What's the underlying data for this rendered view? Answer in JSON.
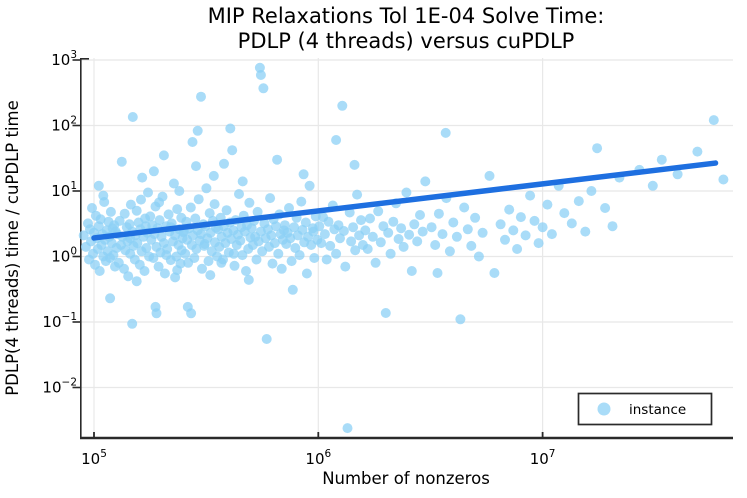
{
  "chart_data": {
    "type": "scatter",
    "title_line1": "MIP Relaxations Tol 1E-04 Solve Time:",
    "title_line2": "PDLP (4 threads) versus cuPDLP",
    "xlabel": "Number of nonzeros",
    "ylabel": "PDLP(4 threads) time / cuPDLP time",
    "x_scale": "log",
    "y_scale": "log",
    "x_tick_exponents": [
      5,
      6,
      7
    ],
    "y_tick_exponents": [
      3,
      2,
      1,
      0,
      -1,
      -2
    ],
    "xlim_log10": [
      4.94,
      7.85
    ],
    "ylim_log10": [
      -2.77,
      3.03
    ],
    "grid": true,
    "legend": {
      "label": "instance",
      "position": "bottom-right"
    },
    "colors": {
      "marker": "#8CD0F5",
      "marker_solid": "#A9DCF8",
      "trend_line": "#1E6FE0",
      "grid": "#E8E8E8",
      "axis": "#2A2A2A",
      "text": "#000000",
      "background": "#FFFFFF"
    },
    "trend_line": {
      "x": [
        100000,
        59000000
      ],
      "y": [
        1.92,
        26.7
      ]
    },
    "points": [
      [
        90000.0,
        2.1
      ],
      [
        92000.0,
        1.4
      ],
      [
        94000.0,
        3.2
      ],
      [
        95000.0,
        0.9
      ],
      [
        96000.0,
        2.6
      ],
      [
        97000.0,
        1.7
      ],
      [
        98000.0,
        5.5
      ],
      [
        99000.0,
        1.1
      ],
      [
        100000.0,
        2.3
      ],
      [
        101000.0,
        0.75
      ],
      [
        102000.0,
        4.2
      ],
      [
        103000.0,
        1.9
      ],
      [
        104000.0,
        1.3
      ],
      [
        105000.0,
        2.9
      ],
      [
        106000.0,
        0.6
      ],
      [
        107000.0,
        3.7
      ],
      [
        108000.0,
        1.5
      ],
      [
        109000.0,
        2.2
      ],
      [
        110000.0,
        1.0
      ],
      [
        111000.0,
        6.8
      ],
      [
        112000.0,
        1.8
      ],
      [
        113000.0,
        0.85
      ],
      [
        114000.0,
        2.5
      ],
      [
        115000.0,
        1.2
      ],
      [
        116000.0,
        3.4
      ],
      [
        117000.0,
        2.0
      ],
      [
        118000.0,
        0.95
      ],
      [
        119000.0,
        4.8
      ],
      [
        120000.0,
        1.6
      ],
      [
        121000.0,
        2.7
      ],
      [
        122000.0,
        1.05
      ],
      [
        123000.0,
        3.0
      ],
      [
        124000.0,
        0.7
      ],
      [
        125000.0,
        2.4
      ],
      [
        118000.0,
        0.23
      ],
      [
        110000.0,
        8.5
      ],
      [
        105000.0,
        12
      ],
      [
        126000.0,
        1.35
      ],
      [
        127000.0,
        2.2
      ],
      [
        129000.0,
        0.8
      ],
      [
        130000.0,
        3.5
      ],
      [
        132000.0,
        1.5
      ],
      [
        133000.0,
        28
      ],
      [
        134000.0,
        2.0
      ],
      [
        136000.0,
        0.65
      ],
      [
        137000.0,
        4.5
      ],
      [
        138000.0,
        1.25
      ],
      [
        140000.0,
        2.8
      ],
      [
        141000.0,
        1.7
      ],
      [
        142000.0,
        0.5
      ],
      [
        144000.0,
        3.1
      ],
      [
        145000.0,
        1.1
      ],
      [
        146000.0,
        6.2
      ],
      [
        148000.0,
        0.094
      ],
      [
        148000.0,
        2.4
      ],
      [
        149000.0,
        135
      ],
      [
        150000.0,
        1.45
      ],
      [
        152000.0,
        0.9
      ],
      [
        153000.0,
        2.1
      ],
      [
        155000.0,
        5.0
      ],
      [
        156000.0,
        1.6
      ],
      [
        158000.0,
        3.3
      ],
      [
        160000.0,
        0.75
      ],
      [
        161000.0,
        2.6
      ],
      [
        163000.0,
        1.2
      ],
      [
        164000.0,
        16
      ],
      [
        166000.0,
        2.0
      ],
      [
        168000.0,
        0.6
      ],
      [
        169000.0,
        3.8
      ],
      [
        171000.0,
        1.35
      ],
      [
        173000.0,
        2.3
      ],
      [
        174000.0,
        9.5
      ],
      [
        176000.0,
        1.0
      ],
      [
        178000.0,
        4.1
      ],
      [
        155000.0,
        0.42
      ],
      [
        145000.0,
        1.9
      ],
      [
        162000.0,
        7.4
      ],
      [
        170000.0,
        2.9
      ],
      [
        180000.0,
        1.8
      ],
      [
        182000.0,
        3.0
      ],
      [
        184000.0,
        0.95
      ],
      [
        186000.0,
        2.2
      ],
      [
        188000.0,
        5.8
      ],
      [
        190000.0,
        1.4
      ],
      [
        192000.0,
        2.7
      ],
      [
        194000.0,
        0.7
      ],
      [
        196000.0,
        3.6
      ],
      [
        198000.0,
        1.15
      ],
      [
        200000.0,
        2.0
      ],
      [
        202000.0,
        8.2
      ],
      [
        205000.0,
        1.6
      ],
      [
        207000.0,
        0.55
      ],
      [
        210000.0,
        2.9
      ],
      [
        212000.0,
        1.3
      ],
      [
        215000.0,
        4.4
      ],
      [
        217000.0,
        2.4
      ],
      [
        220000.0,
        0.88
      ],
      [
        222000.0,
        3.2
      ],
      [
        225000.0,
        1.7
      ],
      [
        227000.0,
        13
      ],
      [
        230000.0,
        2.1
      ],
      [
        233000.0,
        1.0
      ],
      [
        235000.0,
        5.3
      ],
      [
        238000.0,
        1.5
      ],
      [
        240000.0,
        2.6
      ],
      [
        243000.0,
        0.78
      ],
      [
        245000.0,
        3.9
      ],
      [
        248000.0,
        1.9
      ],
      [
        250000.0,
        2.35
      ],
      [
        185000.0,
        20
      ],
      [
        205000.0,
        35
      ],
      [
        230000.0,
        0.48
      ],
      [
        210000.0,
        1.05
      ],
      [
        195000.0,
        6.7
      ],
      [
        240000.0,
        10
      ],
      [
        220000.0,
        2.8
      ],
      [
        188000.0,
        0.17
      ],
      [
        190000.0,
        0.136
      ],
      [
        246000.0,
        1.25
      ],
      [
        235000.0,
        0.62
      ],
      [
        252000.0,
        2.4
      ],
      [
        255000.0,
        1.1
      ],
      [
        258000.0,
        3.4
      ],
      [
        260000.0,
        1.8
      ],
      [
        263000.0,
        0.8
      ],
      [
        266000.0,
        2.7
      ],
      [
        270000.0,
        5.6
      ],
      [
        273000.0,
        1.5
      ],
      [
        276000.0,
        2.1
      ],
      [
        280000.0,
        0.95
      ],
      [
        283000.0,
        3.8
      ],
      [
        286000.0,
        1.3
      ],
      [
        290000.0,
        2.5
      ],
      [
        293000.0,
        7.5
      ],
      [
        296000.0,
        1.75
      ],
      [
        300000.0,
        275
      ],
      [
        300000.0,
        2.2
      ],
      [
        303000.0,
        0.65
      ],
      [
        307000.0,
        3.1
      ],
      [
        310000.0,
        1.45
      ],
      [
        314000.0,
        2.9
      ],
      [
        317000.0,
        11
      ],
      [
        320000.0,
        1.9
      ],
      [
        324000.0,
        0.85
      ],
      [
        328000.0,
        4.6
      ],
      [
        331000.0,
        2.3
      ],
      [
        335000.0,
        1.2
      ],
      [
        339000.0,
        3.5
      ],
      [
        342000.0,
        17
      ],
      [
        346000.0,
        1.65
      ],
      [
        350000.0,
        2.75
      ],
      [
        354000.0,
        1.0
      ],
      [
        262000.0,
        0.17
      ],
      [
        271000.0,
        0.136
      ],
      [
        330000.0,
        0.52
      ],
      [
        285000.0,
        24
      ],
      [
        345000.0,
        6.3
      ],
      [
        312000.0,
        1.55
      ],
      [
        290000.0,
        83
      ],
      [
        275000.0,
        56
      ],
      [
        358000.0,
        2.6
      ],
      [
        362000.0,
        1.4
      ],
      [
        367000.0,
        3.9
      ],
      [
        371000.0,
        2.0
      ],
      [
        376000.0,
        0.9
      ],
      [
        380000.0,
        2.9
      ],
      [
        385000.0,
        1.6
      ],
      [
        390000.0,
        5.1
      ],
      [
        394000.0,
        2.3
      ],
      [
        399000.0,
        1.15
      ],
      [
        404000.0,
        3.3
      ],
      [
        409000.0,
        1.85
      ],
      [
        413000.0,
        42
      ],
      [
        418000.0,
        2.5
      ],
      [
        423000.0,
        0.72
      ],
      [
        428000.0,
        3.6
      ],
      [
        433000.0,
        1.5
      ],
      [
        438000.0,
        2.15
      ],
      [
        443000.0,
        9.0
      ],
      [
        449000.0,
        1.75
      ],
      [
        454000.0,
        2.8
      ],
      [
        459000.0,
        1.05
      ],
      [
        465000.0,
        4.2
      ],
      [
        470000.0,
        2.4
      ],
      [
        476000.0,
        0.6
      ],
      [
        481000.0,
        3.0
      ],
      [
        487000.0,
        1.3
      ],
      [
        493000.0,
        6.6
      ],
      [
        498000.0,
        1.95
      ],
      [
        460000.0,
        14
      ],
      [
        380000.0,
        26
      ],
      [
        420000.0,
        1.1
      ],
      [
        490000.0,
        0.44
      ],
      [
        370000.0,
        0.8
      ],
      [
        405000.0,
        90
      ],
      [
        505000.0,
        2.7
      ],
      [
        511000.0,
        1.5
      ],
      [
        517000.0,
        3.5
      ],
      [
        523000.0,
        2.0
      ],
      [
        530000.0,
        0.9
      ],
      [
        536000.0,
        4.8
      ],
      [
        542000.0,
        1.7
      ],
      [
        549000.0,
        760
      ],
      [
        555000.0,
        590
      ],
      [
        555000.0,
        2.4
      ],
      [
        562000.0,
        1.2
      ],
      [
        569000.0,
        370
      ],
      [
        575000.0,
        3.2
      ],
      [
        582000.0,
        1.9
      ],
      [
        589000.0,
        0.055
      ],
      [
        596000.0,
        2.6
      ],
      [
        603000.0,
        1.4
      ],
      [
        610000.0,
        7.8
      ],
      [
        617000.0,
        2.1
      ],
      [
        625000.0,
        0.78
      ],
      [
        632000.0,
        3.7
      ],
      [
        640000.0,
        1.6
      ],
      [
        647000.0,
        2.9
      ],
      [
        655000.0,
        30
      ],
      [
        663000.0,
        1.1
      ],
      [
        671000.0,
        4.4
      ],
      [
        679000.0,
        2.2
      ],
      [
        687000.0,
        0.65
      ],
      [
        695000.0,
        1.8
      ],
      [
        703000.0,
        2.5
      ],
      [
        710000.0,
        3.0
      ],
      [
        720000.0,
        1.55
      ],
      [
        730000.0,
        2.3
      ],
      [
        740000.0,
        5.5
      ],
      [
        750000.0,
        1.9
      ],
      [
        760000.0,
        0.85
      ],
      [
        770000.0,
        0.31
      ],
      [
        780000.0,
        2.8
      ],
      [
        790000.0,
        1.35
      ],
      [
        800000.0,
        3.9
      ],
      [
        810000.0,
        2.1
      ],
      [
        825000.0,
        1.05
      ],
      [
        840000.0,
        6.9
      ],
      [
        850000.0,
        2.55
      ],
      [
        865000.0,
        1.65
      ],
      [
        880000.0,
        3.3
      ],
      [
        890000.0,
        0.55
      ],
      [
        900000.0,
        2.0
      ],
      [
        915000.0,
        12
      ],
      [
        930000.0,
        1.5
      ],
      [
        945000.0,
        2.7
      ],
      [
        960000.0,
        0.95
      ],
      [
        975000.0,
        4.1
      ],
      [
        990000.0,
        1.8
      ],
      [
        860000.0,
        18
      ],
      [
        950000.0,
        2.4
      ],
      [
        1010000.0,
        2.9
      ],
      [
        1030000.0,
        1.6
      ],
      [
        1050000.0,
        4.0
      ],
      [
        1070000.0,
        2.2
      ],
      [
        1090000.0,
        0.9
      ],
      [
        1110000.0,
        3.4
      ],
      [
        1130000.0,
        1.45
      ],
      [
        1160000.0,
        6.0
      ],
      [
        1180000.0,
        2.6
      ],
      [
        1200000.0,
        1.1
      ],
      [
        1230000.0,
        3.0
      ],
      [
        1250000.0,
        1.9
      ],
      [
        1280000.0,
        200
      ],
      [
        1300000.0,
        2.45
      ],
      [
        1320000.0,
        0.7
      ],
      [
        1350000.0,
        0.0024
      ],
      [
        1380000.0,
        4.7
      ],
      [
        1400000.0,
        1.7
      ],
      [
        1430000.0,
        2.8
      ],
      [
        1460000.0,
        1.25
      ],
      [
        1490000.0,
        8.8
      ],
      [
        1520000.0,
        2.1
      ],
      [
        1550000.0,
        3.6
      ],
      [
        1580000.0,
        1.5
      ],
      [
        1200000.0,
        60
      ],
      [
        1450000.0,
        25
      ],
      [
        1620000.0,
        2.5
      ],
      [
        1660000.0,
        1.3
      ],
      [
        1700000.0,
        3.8
      ],
      [
        1750000.0,
        2.0
      ],
      [
        1800000.0,
        0.8
      ],
      [
        1850000.0,
        4.9
      ],
      [
        1900000.0,
        1.65
      ],
      [
        1950000.0,
        2.9
      ],
      [
        2000000.0,
        0.137
      ],
      [
        2050000.0,
        2.3
      ],
      [
        2100000.0,
        1.1
      ],
      [
        2160000.0,
        3.4
      ],
      [
        2220000.0,
        6.5
      ],
      [
        2280000.0,
        1.85
      ],
      [
        2340000.0,
        2.7
      ],
      [
        2400000.0,
        1.4
      ],
      [
        2470000.0,
        9.5
      ],
      [
        2540000.0,
        2.15
      ],
      [
        2610000.0,
        0.6
      ],
      [
        2680000.0,
        3.1
      ],
      [
        2760000.0,
        1.7
      ],
      [
        2840000.0,
        4.3
      ],
      [
        2920000.0,
        2.4
      ],
      [
        3000000.0,
        14
      ],
      [
        3200000.0,
        2.8
      ],
      [
        3320000.0,
        1.5
      ],
      [
        3450000.0,
        4.5
      ],
      [
        3580000.0,
        2.2
      ],
      [
        3720000.0,
        7.8
      ],
      [
        3860000.0,
        1.2
      ],
      [
        3700000.0,
        77
      ],
      [
        4000000.0,
        3.3
      ],
      [
        4150000.0,
        2.0
      ],
      [
        4300000.0,
        0.11
      ],
      [
        4470000.0,
        5.6
      ],
      [
        4640000.0,
        2.6
      ],
      [
        4810000.0,
        1.45
      ],
      [
        5000000.0,
        3.9
      ],
      [
        5200000.0,
        1.0
      ],
      [
        5400000.0,
        2.3
      ],
      [
        5800000.0,
        17
      ],
      [
        6100000.0,
        0.56
      ],
      [
        3400000.0,
        0.56
      ],
      [
        6500000.0,
        3.1
      ],
      [
        6800000.0,
        1.8
      ],
      [
        7100000.0,
        5.2
      ],
      [
        7400000.0,
        2.5
      ],
      [
        7700000.0,
        1.3
      ],
      [
        8000000.0,
        4.0
      ],
      [
        8400000.0,
        2.1
      ],
      [
        8800000.0,
        8.5
      ],
      [
        9200000.0,
        3.5
      ],
      [
        9600000.0,
        1.6
      ],
      [
        10000000.0,
        2.8
      ],
      [
        10500000.0,
        6.2
      ],
      [
        11000000.0,
        2.2
      ],
      [
        11800000.0,
        12
      ],
      [
        12500000.0,
        4.6
      ],
      [
        13500000.0,
        3.2
      ],
      [
        14500000.0,
        7.0
      ],
      [
        15500000.0,
        2.4
      ],
      [
        16500000.0,
        10
      ],
      [
        17500000.0,
        45
      ],
      [
        19000000.0,
        5.5
      ],
      [
        20500000.0,
        2.9
      ],
      [
        22000000.0,
        16
      ],
      [
        27000000.0,
        21
      ],
      [
        31000000.0,
        12
      ],
      [
        34000000.0,
        30
      ],
      [
        40000000.0,
        18
      ],
      [
        49000000.0,
        40
      ],
      [
        58000000.0,
        121
      ],
      [
        64000000.0,
        15
      ]
    ]
  }
}
